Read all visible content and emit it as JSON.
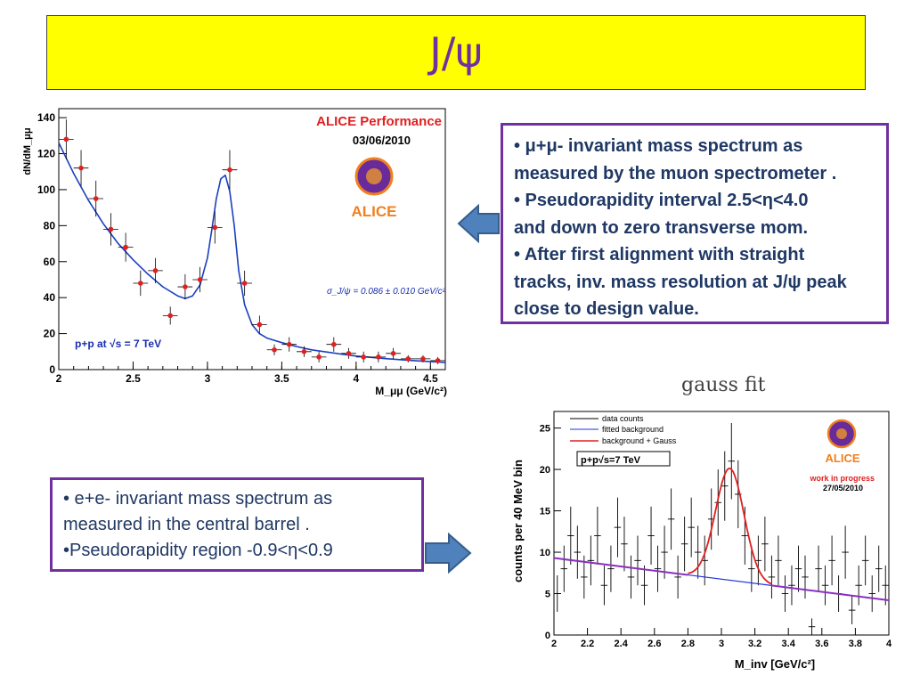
{
  "slide": {
    "title": "J/ψ"
  },
  "chart_data": [
    {
      "type": "scatter",
      "title": "ALICE Performance",
      "date": "03/06/2010",
      "logo_text": "ALICE",
      "xlabel": "M_μμ (GeV/c²)",
      "ylabel": "dN/dM_μμ",
      "xlim": [
        2,
        4.6
      ],
      "ylim": [
        0,
        145
      ],
      "xticks": [
        "2",
        "2.5",
        "3",
        "3.5",
        "4",
        "4.5"
      ],
      "yticks": [
        "0",
        "20",
        "40",
        "60",
        "80",
        "100",
        "120",
        "140"
      ],
      "annotation_sigma": "σ_J/ψ = 0.086 ± 0.010 GeV/c²",
      "annotation_energy": "p+p at √s = 7 TeV",
      "colors": {
        "points": "#e02020",
        "fit": "#1a3fc0",
        "title": "#e02020",
        "energy_label": "#1a2fb0"
      },
      "series": [
        {
          "type": "points_with_errors",
          "x": [
            2.05,
            2.15,
            2.25,
            2.35,
            2.45,
            2.55,
            2.65,
            2.75,
            2.85,
            2.95,
            3.05,
            3.15,
            3.25,
            3.35,
            3.45,
            3.55,
            3.65,
            3.75,
            3.85,
            3.95,
            4.05,
            4.15,
            4.25,
            4.35,
            4.45,
            4.55
          ],
          "y": [
            128,
            112,
            95,
            78,
            68,
            48,
            55,
            30,
            46,
            50,
            79,
            111,
            48,
            25,
            11,
            14,
            10,
            7,
            14,
            9,
            7,
            7,
            9,
            6,
            6,
            5
          ],
          "yerr": [
            11,
            10,
            10,
            9,
            8,
            7,
            7,
            5,
            7,
            7,
            9,
            11,
            7,
            5,
            3,
            4,
            3,
            3,
            4,
            3,
            3,
            3,
            3,
            2,
            2,
            2
          ]
        },
        {
          "type": "fit_line",
          "x": [
            2.0,
            2.1,
            2.2,
            2.3,
            2.4,
            2.5,
            2.6,
            2.7,
            2.8,
            2.85,
            2.9,
            2.95,
            3.0,
            3.03,
            3.06,
            3.09,
            3.12,
            3.15,
            3.18,
            3.21,
            3.25,
            3.3,
            3.35,
            3.4,
            3.5,
            3.6,
            3.7,
            3.8,
            3.9,
            4.0,
            4.2,
            4.4,
            4.6
          ],
          "y": [
            126,
            109,
            94,
            81,
            70,
            61,
            53,
            46,
            41,
            39.5,
            41,
            47,
            62,
            78,
            95,
            106,
            108,
            99,
            80,
            55,
            36,
            25,
            20,
            17.5,
            15,
            12.8,
            11,
            9.8,
            8.6,
            7.5,
            6.1,
            4.9,
            4.0
          ]
        }
      ]
    },
    {
      "type": "line",
      "title": "gauss fit",
      "xlabel": "M_inv [GeV/c²]",
      "ylabel": "counts per 40 MeV bin",
      "xlim": [
        2,
        4
      ],
      "ylim": [
        0,
        27
      ],
      "xticks": [
        "2",
        "2.2",
        "2.4",
        "2.6",
        "2.8",
        "3",
        "3.2",
        "3.4",
        "3.6",
        "3.8",
        "4"
      ],
      "yticks": [
        "0",
        "5",
        "10",
        "15",
        "20",
        "25"
      ],
      "legend": [
        "data counts",
        "fitted background",
        "background + Gauss"
      ],
      "legend_position": "top-left",
      "annotation_energy": "p+p√s=7 TeV",
      "annotation_status": "work in progress",
      "annotation_date": "27/05/2010",
      "logo_text": "ALICE",
      "colors": {
        "data": "#000000",
        "background": "#2030e0",
        "gauss": "#e02020",
        "overlap": "#8a30c0",
        "status": "#e02020"
      },
      "series": [
        {
          "name": "data counts",
          "type": "histogram_errors",
          "bin_width": 0.04,
          "x": [
            2.02,
            2.06,
            2.1,
            2.14,
            2.18,
            2.22,
            2.26,
            2.3,
            2.34,
            2.38,
            2.42,
            2.46,
            2.5,
            2.54,
            2.58,
            2.62,
            2.66,
            2.7,
            2.74,
            2.78,
            2.82,
            2.86,
            2.9,
            2.94,
            2.98,
            3.02,
            3.06,
            3.1,
            3.14,
            3.18,
            3.22,
            3.26,
            3.3,
            3.34,
            3.38,
            3.42,
            3.46,
            3.5,
            3.54,
            3.58,
            3.62,
            3.66,
            3.7,
            3.74,
            3.78,
            3.82,
            3.86,
            3.9,
            3.94,
            3.98
          ],
          "y": [
            5,
            8,
            12,
            10,
            7,
            9,
            12,
            6,
            8,
            13,
            11,
            7,
            9,
            6,
            12,
            8,
            10,
            14,
            7,
            11,
            13,
            10,
            9,
            14,
            16,
            18,
            21,
            17,
            12,
            8,
            9,
            11,
            7,
            9,
            5,
            6,
            8,
            7,
            1,
            8,
            6,
            9,
            5,
            10,
            3,
            6,
            9,
            5,
            8,
            6
          ],
          "yerr": [
            2.2,
            2.8,
            3.5,
            3.2,
            2.6,
            3.0,
            3.5,
            2.4,
            2.8,
            3.6,
            3.3,
            2.6,
            3.0,
            2.4,
            3.5,
            2.8,
            3.2,
            3.7,
            2.6,
            3.3,
            3.6,
            3.2,
            3.0,
            3.7,
            4.0,
            4.2,
            4.6,
            4.1,
            3.5,
            2.8,
            3.0,
            3.3,
            2.6,
            3.0,
            2.2,
            2.4,
            2.8,
            2.6,
            1.0,
            2.8,
            2.4,
            3.0,
            2.2,
            3.2,
            1.7,
            2.4,
            3.0,
            2.2,
            2.8,
            2.4
          ]
        },
        {
          "name": "fitted background",
          "type": "line",
          "x": [
            2.0,
            4.0
          ],
          "y": [
            9.3,
            4.2
          ]
        },
        {
          "name": "background + Gauss",
          "type": "gauss_on_linear_bg",
          "mean": 3.05,
          "sigma": 0.085,
          "amplitude": 13.5,
          "x_range": [
            2.8,
            3.3
          ]
        }
      ]
    }
  ],
  "box_muon": {
    "line1": "• μ+μ- invariant mass spectrum as",
    "line2": "measured by the muon spectrometer .",
    "line3": "• Pseudorapidity interval  2.5<η<4.0",
    "line4": "and down to zero transverse mom.",
    "line5": "• After first alignment with straight",
    "line6": "tracks, inv. mass resolution at J/ψ peak",
    "line7": "close to design value."
  },
  "box_electron": {
    "line1": "• e+e- invariant mass spectrum as",
    "line2": "measured in the central barrel .",
    "line3": "•Pseudorapidity region -0.9<η<0.9"
  },
  "arrows": {
    "fill": "#4f81bd",
    "stroke": "#385d8a"
  }
}
